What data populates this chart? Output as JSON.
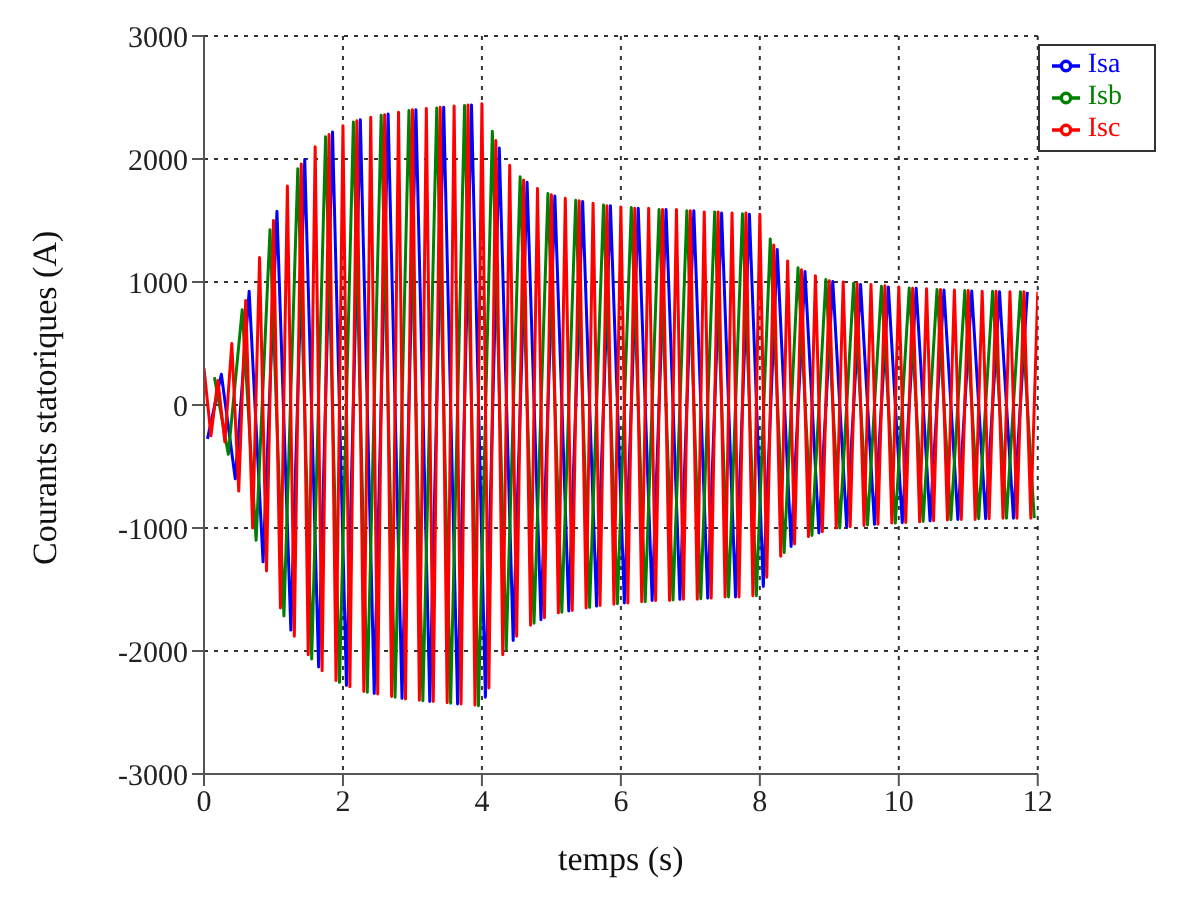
{
  "chart_data": {
    "type": "line",
    "xlabel": "temps (s)",
    "ylabel": "Courants statoriques (A)",
    "xlim": [
      0,
      12
    ],
    "xticks": [
      0,
      2,
      4,
      6,
      8,
      10,
      12
    ],
    "ylim": [
      -3000,
      3000
    ],
    "yticks": [
      -3000,
      -2000,
      -1000,
      0,
      1000,
      2000,
      3000
    ],
    "grid": true,
    "legend": "top right",
    "series": [
      {
        "name": "Isa",
        "color": "#0000ff",
        "x": [
          0.05,
          0.25,
          0.45,
          0.65,
          0.85,
          1.05,
          1.25,
          1.45,
          1.65,
          1.85,
          2.05,
          2.25,
          2.45,
          2.65,
          2.85,
          3.05,
          3.25,
          3.45,
          3.65,
          3.85,
          4.05,
          4.25,
          4.45,
          4.65,
          4.85,
          5.05,
          5.25,
          5.45,
          5.65,
          5.85,
          6.05,
          6.25,
          6.45,
          6.65,
          6.85,
          7.05,
          7.25,
          7.45,
          7.65,
          7.85,
          8.05,
          8.25,
          8.45,
          8.65,
          8.85,
          9.05,
          9.25,
          9.45,
          9.65,
          9.85,
          10.05,
          10.25,
          10.45,
          10.65,
          10.85,
          11.05,
          11.25,
          11.45,
          11.65,
          11.85
        ],
        "values": [
          -275,
          250,
          -600,
          925,
          -1275,
          1575,
          -1830,
          1995,
          -2130,
          2220,
          -2280,
          2320,
          -2345,
          2365,
          -2385,
          2400,
          -2410,
          2420,
          -2430,
          2440,
          -2375,
          2090,
          -1915,
          1810,
          -1745,
          1700,
          -1675,
          1655,
          -1635,
          1620,
          -1610,
          1600,
          -1590,
          1590,
          -1580,
          1580,
          -1570,
          1560,
          -1560,
          1550,
          -1475,
          1265,
          -1150,
          1085,
          -1040,
          1005,
          -990,
          980,
          -970,
          960,
          -957,
          950,
          -942,
          935,
          -930,
          927,
          -925,
          920,
          -920,
          920
        ]
      },
      {
        "name": "Isb",
        "color": "#008000",
        "x": [
          0.15,
          0.35,
          0.55,
          0.75,
          0.95,
          1.15,
          1.35,
          1.55,
          1.75,
          1.95,
          2.15,
          2.35,
          2.55,
          2.75,
          2.95,
          3.15,
          3.35,
          3.55,
          3.75,
          3.95,
          4.15,
          4.35,
          4.55,
          4.75,
          4.95,
          5.15,
          5.35,
          5.55,
          5.75,
          5.95,
          6.15,
          6.35,
          6.55,
          6.75,
          6.95,
          7.15,
          7.35,
          7.55,
          7.75,
          7.95,
          8.15,
          8.35,
          8.55,
          8.75,
          8.95,
          9.15,
          9.35,
          9.55,
          9.75,
          9.95,
          10.15,
          10.35,
          10.55,
          10.75,
          10.95,
          11.15,
          11.35,
          11.55,
          11.75,
          11.95
        ],
        "values": [
          225,
          -400,
          775,
          -1100,
          1425,
          -1715,
          1920,
          -2065,
          2180,
          -2255,
          2300,
          -2335,
          2355,
          -2375,
          2395,
          -2405,
          2415,
          -2425,
          2435,
          -2445,
          2225,
          -1990,
          1855,
          -1775,
          1720,
          -1685,
          1665,
          -1645,
          1625,
          -1615,
          1605,
          -1600,
          1590,
          -1585,
          1580,
          -1575,
          1570,
          -1560,
          1555,
          -1550,
          1350,
          -1200,
          1115,
          -1060,
          1020,
          -1000,
          990,
          -975,
          965,
          -960,
          952,
          -947,
          940,
          -932,
          930,
          -925,
          925,
          -920,
          920,
          -920
        ]
      },
      {
        "name": "Isc",
        "color": "#ff0000",
        "x": [
          0,
          0.1,
          0.2,
          0.3,
          0.4,
          0.5,
          0.6,
          0.7,
          0.8,
          0.9,
          1,
          1.1,
          1.2,
          1.3,
          1.4,
          1.5,
          1.6,
          1.7,
          1.8,
          1.9,
          2,
          2.1,
          2.2,
          2.3,
          2.4,
          2.5,
          2.6,
          2.7,
          2.8,
          2.9,
          3,
          3.1,
          3.2,
          3.3,
          3.4,
          3.5,
          3.6,
          3.7,
          3.8,
          3.9,
          4,
          4.1,
          4.2,
          4.3,
          4.4,
          4.5,
          4.6,
          4.7,
          4.8,
          4.9,
          5,
          5.1,
          5.2,
          5.3,
          5.4,
          5.5,
          5.6,
          5.7,
          5.8,
          5.9,
          6,
          6.1,
          6.2,
          6.3,
          6.4,
          6.5,
          6.6,
          6.7,
          6.8,
          6.9,
          7,
          7.1,
          7.2,
          7.3,
          7.4,
          7.5,
          7.6,
          7.7,
          7.8,
          7.9,
          8,
          8.1,
          8.2,
          8.3,
          8.4,
          8.5,
          8.6,
          8.7,
          8.8,
          8.9,
          9,
          9.1,
          9.2,
          9.3,
          9.4,
          9.5,
          9.6,
          9.7,
          9.8,
          9.9,
          10,
          10.1,
          10.2,
          10.3,
          10.4,
          10.5,
          10.6,
          10.7,
          10.8,
          10.9,
          11,
          11.1,
          11.2,
          11.3,
          11.4,
          11.5,
          11.6,
          11.7,
          11.8,
          11.9,
          12
        ],
        "values": [
          300,
          -250,
          200,
          -300,
          500,
          -700,
          850,
          -1000,
          1200,
          -1350,
          1500,
          -1650,
          1780,
          -1880,
          1960,
          -2030,
          2100,
          -2160,
          2200,
          -2240,
          2270,
          -2290,
          2310,
          -2330,
          2340,
          -2350,
          2360,
          -2370,
          2380,
          -2390,
          2400,
          -2400,
          2410,
          -2410,
          2420,
          -2420,
          2430,
          -2430,
          2440,
          -2440,
          2450,
          -2300,
          2150,
          -2030,
          1950,
          -1880,
          1830,
          -1790,
          1760,
          -1730,
          1710,
          -1690,
          1680,
          -1670,
          1660,
          -1650,
          1640,
          -1630,
          1620,
          -1620,
          1610,
          -1610,
          1600,
          -1600,
          1600,
          -1590,
          1590,
          -1590,
          1590,
          -1580,
          1580,
          -1580,
          1570,
          -1570,
          1570,
          -1560,
          1560,
          -1560,
          1560,
          -1550,
          1550,
          -1400,
          1300,
          -1230,
          1170,
          -1130,
          1100,
          -1070,
          1050,
          -1030,
          1010,
          -1000,
          1000,
          -990,
          990,
          -980,
          980,
          -970,
          970,
          -960,
          960,
          -955,
          950,
          -950,
          945,
          -940,
          940,
          -935,
          935,
          -930,
          930,
          -930,
          925,
          -925,
          925,
          -920,
          920,
          -920,
          920,
          -920,
          920
        ]
      }
    ]
  }
}
